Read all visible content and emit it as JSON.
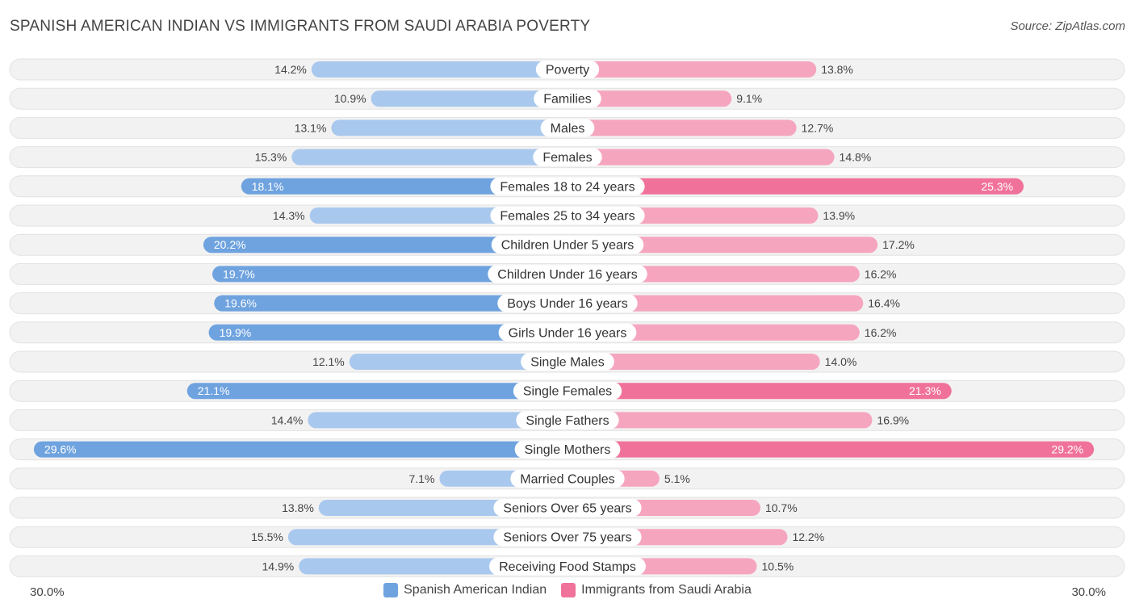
{
  "title": "SPANISH AMERICAN INDIAN VS IMMIGRANTS FROM SAUDI ARABIA POVERTY",
  "source": "Source: ZipAtlas.com",
  "colors": {
    "left": "#6fa3df",
    "left_light": "#a9c8ee",
    "right": "#f0729a",
    "right_light": "#f6a5bf",
    "row_bg": "#eeeeee"
  },
  "chart_data": {
    "type": "bar",
    "orientation": "horizontal-diverging",
    "xlim": [
      -30,
      30
    ],
    "axis_left_label": "30.0%",
    "axis_right_label": "30.0%",
    "categories": [
      "Poverty",
      "Families",
      "Males",
      "Females",
      "Females 18 to 24 years",
      "Females 25 to 34 years",
      "Children Under 5 years",
      "Children Under 16 years",
      "Boys Under 16 years",
      "Girls Under 16 years",
      "Single Males",
      "Single Females",
      "Single Fathers",
      "Single Mothers",
      "Married Couples",
      "Seniors Over 65 years",
      "Seniors Over 75 years",
      "Receiving Food Stamps"
    ],
    "series": [
      {
        "name": "Spanish American Indian",
        "side": "left",
        "values": [
          14.2,
          10.9,
          13.1,
          15.3,
          18.1,
          14.3,
          20.2,
          19.7,
          19.6,
          19.9,
          12.1,
          21.1,
          14.4,
          29.6,
          7.1,
          13.8,
          15.5,
          14.9
        ],
        "labels": [
          "14.2%",
          "10.9%",
          "13.1%",
          "15.3%",
          "18.1%",
          "14.3%",
          "20.2%",
          "19.7%",
          "19.6%",
          "19.9%",
          "12.1%",
          "21.1%",
          "14.4%",
          "29.6%",
          "7.1%",
          "13.8%",
          "15.5%",
          "14.9%"
        ]
      },
      {
        "name": "Immigrants from Saudi Arabia",
        "side": "right",
        "values": [
          13.8,
          9.1,
          12.7,
          14.8,
          25.3,
          13.9,
          17.2,
          16.2,
          16.4,
          16.2,
          14.0,
          21.3,
          16.9,
          29.2,
          5.1,
          10.7,
          12.2,
          10.5
        ],
        "labels": [
          "13.8%",
          "9.1%",
          "12.7%",
          "14.8%",
          "25.3%",
          "13.9%",
          "17.2%",
          "16.2%",
          "16.4%",
          "16.2%",
          "14.0%",
          "21.3%",
          "16.9%",
          "29.2%",
          "5.1%",
          "10.7%",
          "12.2%",
          "10.5%"
        ]
      }
    ],
    "legend": [
      "Spanish American Indian",
      "Immigrants from Saudi Arabia"
    ],
    "legend_position": "bottom-center"
  }
}
